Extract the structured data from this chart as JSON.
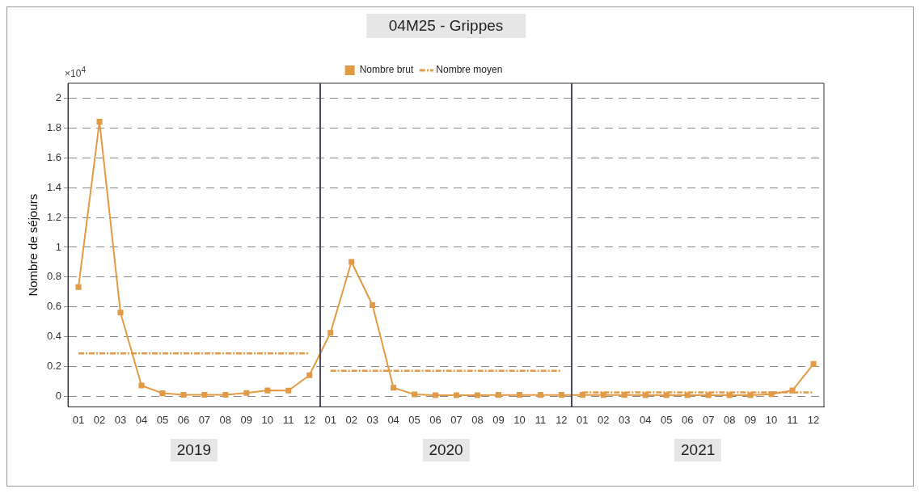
{
  "chart_data": {
    "type": "line",
    "title": "04M25 - Grippes",
    "ylabel": "Nombre de séjours",
    "categories": [
      "01",
      "02",
      "03",
      "04",
      "05",
      "06",
      "07",
      "08",
      "09",
      "10",
      "11",
      "12",
      "01",
      "02",
      "03",
      "04",
      "05",
      "06",
      "07",
      "08",
      "09",
      "10",
      "11",
      "12",
      "01",
      "02",
      "03",
      "04",
      "05",
      "06",
      "07",
      "08",
      "09",
      "10",
      "11",
      "12"
    ],
    "series": [
      {
        "name": "Nombre brut",
        "color": "#e39a44",
        "marker": "square",
        "line_style": "solid",
        "values": [
          0.733,
          1.842,
          0.562,
          0.073,
          0.021,
          0.011,
          0.011,
          0.011,
          0.023,
          0.04,
          0.039,
          0.142,
          0.427,
          0.902,
          0.612,
          0.058,
          0.013,
          0.008,
          0.008,
          0.008,
          0.01,
          0.01,
          0.01,
          0.01,
          0.01,
          0.01,
          0.01,
          0.008,
          0.008,
          0.008,
          0.008,
          0.008,
          0.008,
          0.015,
          0.04,
          0.218
        ]
      },
      {
        "name": "Nombre moyen",
        "color": "#e39a44",
        "marker": "none",
        "line_style": "dashed",
        "values": [
          0.288,
          0.288,
          0.288,
          0.288,
          0.288,
          0.288,
          0.288,
          0.288,
          0.288,
          0.288,
          0.288,
          0.288,
          null,
          null,
          null,
          null,
          null,
          null,
          null,
          null,
          null,
          null,
          null,
          null,
          null,
          null,
          null,
          null,
          null,
          null,
          null,
          null,
          null,
          null,
          null,
          null
        ]
      },
      {
        "color": "#e39a44",
        "marker": "none",
        "line_style": "dashed",
        "values": [
          null,
          null,
          null,
          null,
          null,
          null,
          null,
          null,
          null,
          null,
          null,
          null,
          0.172,
          0.172,
          0.172,
          0.172,
          0.172,
          0.172,
          0.172,
          0.172,
          0.172,
          0.172,
          0.172,
          0.172,
          null,
          null,
          null,
          null,
          null,
          null,
          null,
          null,
          null,
          null,
          null,
          null
        ]
      },
      {
        "color": "#e39a44",
        "marker": "none",
        "line_style": "dashed",
        "values": [
          null,
          null,
          null,
          null,
          null,
          null,
          null,
          null,
          null,
          null,
          null,
          null,
          null,
          null,
          null,
          null,
          null,
          null,
          null,
          null,
          null,
          null,
          null,
          null,
          0.027,
          0.027,
          0.027,
          0.027,
          0.027,
          0.027,
          0.027,
          0.027,
          0.027,
          0.027,
          0.027,
          0.027
        ]
      }
    ],
    "ylim": [
      -0.07,
      2.1
    ],
    "yticks": [
      0,
      0.2,
      0.4,
      0.6,
      0.8,
      1,
      1.2,
      1.4,
      1.6,
      1.8,
      2
    ],
    "grid": "y",
    "legend": "top",
    "annotations": [
      "×10$^{4}$",
      "2019",
      "2020",
      "2021"
    ]
  }
}
